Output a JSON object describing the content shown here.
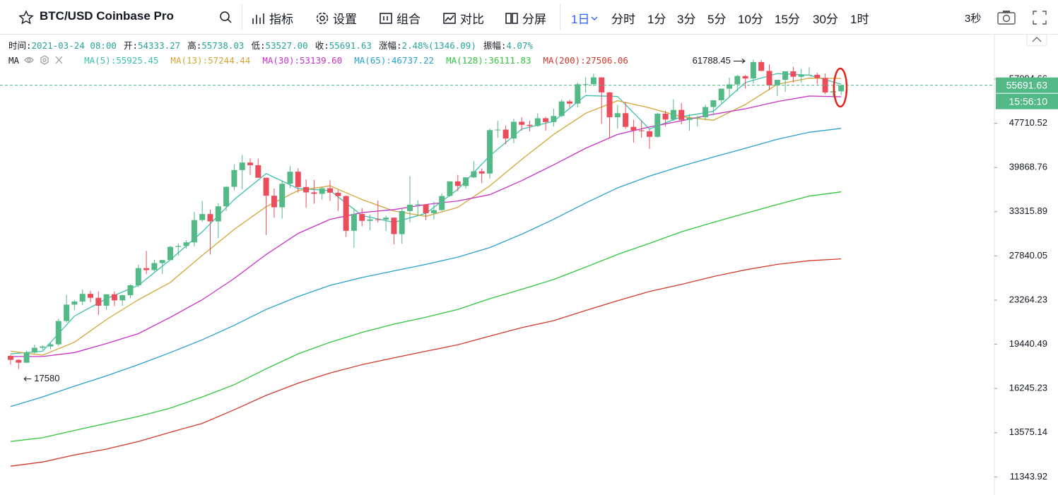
{
  "toolbar": {
    "symbol": "BTC/USD Coinbase Pro",
    "tools": [
      "指标",
      "设置",
      "组合",
      "对比",
      "分屏"
    ],
    "intervals": [
      "1日",
      "分时",
      "1分",
      "3分",
      "5分",
      "10分",
      "15分",
      "30分",
      "1时"
    ],
    "refresh": "3秒"
  },
  "info": [
    {
      "label": "时间:",
      "value": "2021-03-24 08:00"
    },
    {
      "label": "开:",
      "value": "54333.27"
    },
    {
      "label": "高:",
      "value": "55738.03"
    },
    {
      "label": "低:",
      "value": "53527.00"
    },
    {
      "label": "收:",
      "value": "55691.63"
    },
    {
      "label": "涨幅:",
      "value": "2.48%(1346.09)"
    },
    {
      "label": "振幅:",
      "value": "4.07%"
    }
  ],
  "chart_data": {
    "type": "candlestick",
    "indicator": "MA",
    "log_scale": true,
    "ylim": [
      10540,
      68600
    ],
    "yticks": [
      57094.66,
      47710.52,
      39868.76,
      33315.89,
      27840.05,
      23264.23,
      19440.49,
      16245.23,
      13575.14,
      11343.92
    ],
    "up_color": "#53b987",
    "down_color": "#eb4d5c",
    "countdown": "15:56:10",
    "candles": [
      [
        18550,
        18640,
        17900,
        18250
      ],
      [
        18250,
        18290,
        17580,
        18040
      ],
      [
        18040,
        18950,
        18020,
        18800
      ],
      [
        18800,
        19410,
        18720,
        19170
      ],
      [
        19170,
        19350,
        19000,
        19270
      ],
      [
        19270,
        19570,
        19050,
        19440
      ],
      [
        19440,
        21560,
        19290,
        21370
      ],
      [
        21370,
        23770,
        21230,
        22840
      ],
      [
        22840,
        23290,
        22350,
        23130
      ],
      [
        23130,
        24300,
        22800,
        23860
      ],
      [
        23860,
        24170,
        23070,
        23480
      ],
      [
        23480,
        24100,
        21900,
        22740
      ],
      [
        22740,
        23830,
        22350,
        23820
      ],
      [
        23820,
        24100,
        22700,
        23240
      ],
      [
        23240,
        23800,
        22720,
        23730
      ],
      [
        23730,
        24790,
        23440,
        24710
      ],
      [
        24710,
        26870,
        24520,
        26490
      ],
      [
        26490,
        28420,
        25850,
        26280
      ],
      [
        26280,
        27400,
        26130,
        27040
      ],
      [
        27040,
        27380,
        25880,
        27370
      ],
      [
        27370,
        28990,
        27370,
        28880
      ],
      [
        28880,
        29300,
        27850,
        28990
      ],
      [
        28990,
        29680,
        28680,
        29410
      ],
      [
        29410,
        33300,
        28950,
        32200
      ],
      [
        32200,
        34800,
        32000,
        33000
      ],
      [
        33000,
        33600,
        28000,
        32030
      ],
      [
        32030,
        34500,
        29900,
        34050
      ],
      [
        34050,
        36980,
        33420,
        36860
      ],
      [
        36860,
        40360,
        36320,
        39460
      ],
      [
        39460,
        41950,
        36500,
        40670
      ],
      [
        40670,
        41380,
        38700,
        40240
      ],
      [
        40240,
        41350,
        38300,
        38240
      ],
      [
        38240,
        38240,
        30300,
        35550
      ],
      [
        35550,
        36600,
        32500,
        33920
      ],
      [
        33920,
        37800,
        32400,
        37320
      ],
      [
        37320,
        40100,
        36700,
        39190
      ],
      [
        39190,
        39750,
        36000,
        36830
      ],
      [
        36830,
        38000,
        33850,
        36030
      ],
      [
        36030,
        37900,
        34400,
        35820
      ],
      [
        35820,
        36850,
        35000,
        36640
      ],
      [
        36640,
        37850,
        34800,
        35990
      ],
      [
        35990,
        36400,
        33400,
        35500
      ],
      [
        35500,
        35600,
        30100,
        30830
      ],
      [
        30830,
        33800,
        28800,
        33000
      ],
      [
        33000,
        33800,
        31400,
        32100
      ],
      [
        32100,
        32900,
        30900,
        32290
      ],
      [
        32290,
        34850,
        31900,
        32270
      ],
      [
        32270,
        32800,
        30800,
        32520
      ],
      [
        32520,
        32560,
        29200,
        30420
      ],
      [
        30420,
        33800,
        29250,
        33410
      ],
      [
        33410,
        38500,
        31900,
        34270
      ],
      [
        34270,
        34900,
        32850,
        34320
      ],
      [
        34320,
        34350,
        32200,
        33110
      ],
      [
        33110,
        34700,
        32300,
        33530
      ],
      [
        33530,
        35900,
        33400,
        35510
      ],
      [
        35510,
        37700,
        35400,
        37680
      ],
      [
        37680,
        38700,
        36200,
        36990
      ],
      [
        36990,
        38300,
        36600,
        38300
      ],
      [
        38300,
        40900,
        38200,
        39250
      ],
      [
        39250,
        39700,
        37400,
        38900
      ],
      [
        38900,
        46700,
        38100,
        46400
      ],
      [
        46400,
        48200,
        45000,
        46500
      ],
      [
        46500,
        47300,
        43800,
        44850
      ],
      [
        44850,
        48600,
        44000,
        48000
      ],
      [
        48000,
        48900,
        46300,
        47410
      ],
      [
        47410,
        48200,
        46200,
        47190
      ],
      [
        47190,
        49700,
        47000,
        48700
      ],
      [
        48700,
        49000,
        46300,
        47950
      ],
      [
        47950,
        50600,
        47100,
        49140
      ],
      [
        49140,
        52600,
        48900,
        52150
      ],
      [
        52150,
        52500,
        50900,
        51680
      ],
      [
        51680,
        56300,
        50900,
        55910
      ],
      [
        55910,
        57500,
        54000,
        55920
      ],
      [
        55920,
        58350,
        55500,
        57490
      ],
      [
        57490,
        57500,
        47600,
        54090
      ],
      [
        54090,
        54200,
        44900,
        48890
      ],
      [
        48890,
        51400,
        46700,
        49710
      ],
      [
        49710,
        52000,
        46700,
        47020
      ],
      [
        47020,
        48400,
        44100,
        46350
      ],
      [
        46350,
        48300,
        45000,
        46200
      ],
      [
        46200,
        46600,
        43000,
        45160
      ],
      [
        45160,
        49800,
        45000,
        49610
      ],
      [
        49610,
        50200,
        47100,
        48440
      ],
      [
        48440,
        52600,
        48200,
        50370
      ],
      [
        50370,
        51800,
        47500,
        48370
      ],
      [
        48370,
        49500,
        46300,
        48760
      ],
      [
        48760,
        49200,
        47100,
        48890
      ],
      [
        48890,
        51450,
        48300,
        50970
      ],
      [
        50970,
        52400,
        49300,
        52390
      ],
      [
        52390,
        54900,
        51800,
        54920
      ],
      [
        54920,
        57400,
        53000,
        55880
      ],
      [
        55880,
        58100,
        54300,
        57810
      ],
      [
        57810,
        58000,
        55000,
        57230
      ],
      [
        57230,
        61788.45,
        56100,
        61190
      ],
      [
        61190,
        61700,
        59000,
        59020
      ],
      [
        59020,
        60600,
        54600,
        55650
      ],
      [
        55650,
        56900,
        53300,
        56920
      ],
      [
        56920,
        58900,
        54200,
        58920
      ],
      [
        58920,
        60000,
        56300,
        57640
      ],
      [
        57640,
        59500,
        56300,
        58030
      ],
      [
        58030,
        59900,
        57900,
        58100
      ],
      [
        58100,
        58600,
        56000,
        57350
      ],
      [
        57350,
        58400,
        53700,
        54090
      ],
      [
        54090,
        55850,
        53000,
        54340
      ],
      [
        54333.27,
        55738.03,
        53527.0,
        55691.63
      ]
    ],
    "ma_x": [
      0,
      4,
      8,
      12,
      16,
      20,
      24,
      28,
      32,
      36,
      40,
      44,
      48,
      52,
      56,
      60,
      64,
      68,
      72,
      76,
      80,
      84,
      88,
      92,
      96,
      100,
      104
    ],
    "series": [
      {
        "name": "MA(5)",
        "legend": "MA(5):55925.45",
        "color": "#3bbfad",
        "values": [
          18700,
          18900,
          21800,
          23400,
          24700,
          27400,
          30700,
          35000,
          38900,
          36600,
          36300,
          32800,
          31900,
          33100,
          36500,
          41800,
          46600,
          48100,
          53400,
          53200,
          46600,
          49000,
          50100,
          56300,
          58400,
          58000,
          55925.45
        ]
      },
      {
        "name": "MA(13)",
        "legend": "MA(13):57244.44",
        "color": "#d4a537",
        "values": [
          18900,
          18600,
          19600,
          21500,
          23300,
          25000,
          27900,
          31000,
          34000,
          36300,
          37000,
          35000,
          33400,
          32700,
          33900,
          37000,
          41200,
          45600,
          49700,
          52300,
          50800,
          49000,
          48300,
          51500,
          55900,
          57300,
          57244.44
        ]
      },
      {
        "name": "MA(30)",
        "legend": "MA(30):53139.60",
        "color": "#c930c9",
        "values": [
          18500,
          18500,
          18800,
          19500,
          20300,
          21700,
          23300,
          25400,
          28000,
          30500,
          32300,
          33200,
          33600,
          34300,
          34800,
          35700,
          37800,
          40300,
          43100,
          45600,
          47000,
          48200,
          49500,
          50600,
          52100,
          53300,
          53139.6
        ]
      },
      {
        "name": "MA(65)",
        "legend": "MA(65):46737.22",
        "color": "#2a9fd0",
        "values": [
          15100,
          15700,
          16400,
          17100,
          17900,
          18800,
          19800,
          21000,
          22400,
          23600,
          24700,
          25500,
          26200,
          26900,
          27700,
          28800,
          30400,
          32300,
          34500,
          36700,
          38500,
          40100,
          41600,
          43100,
          44700,
          46000,
          46737.22
        ]
      },
      {
        "name": "MA(128)",
        "legend": "MA(128):36111.83",
        "color": "#2fc63c",
        "values": [
          13100,
          13300,
          13700,
          14100,
          14500,
          15000,
          15700,
          16500,
          17600,
          18700,
          19600,
          20400,
          21100,
          21700,
          22400,
          23400,
          24300,
          25300,
          26600,
          28000,
          29300,
          30700,
          31900,
          33100,
          34300,
          35500,
          36111.83
        ]
      },
      {
        "name": "MA(200)",
        "legend": "MA(200):27506.06",
        "color": "#d0392b",
        "values": [
          11850,
          12050,
          12400,
          12700,
          13100,
          13600,
          14100,
          14900,
          15800,
          16600,
          17300,
          17900,
          18400,
          18900,
          19400,
          20100,
          20800,
          21400,
          22300,
          23200,
          24100,
          24800,
          25600,
          26300,
          26900,
          27300,
          27506.06
        ]
      }
    ]
  }
}
